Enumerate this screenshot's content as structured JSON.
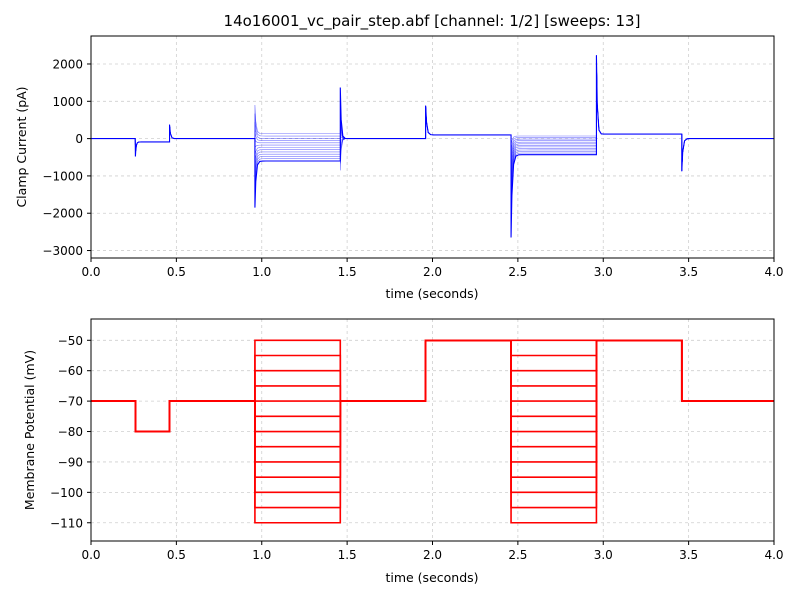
{
  "chart_data": [
    {
      "type": "line",
      "title": "14o16001_vc_pair_step.abf [channel: 1/2] [sweeps: 13]",
      "xlabel": "time (seconds)",
      "ylabel": "Clamp Current (pA)",
      "xlim": [
        0,
        4
      ],
      "ylim": [
        -3200,
        2750
      ],
      "x_ticks": [
        "0.0",
        "0.5",
        "1.0",
        "1.5",
        "2.0",
        "2.5",
        "3.0",
        "3.5",
        "4.0"
      ],
      "y_ticks": [
        "−3000",
        "−2000",
        "−1000",
        "0",
        "1000",
        "2000"
      ],
      "x_tick_values": [
        0,
        0.5,
        1.0,
        1.5,
        2.0,
        2.5,
        3.0,
        3.5,
        4.0
      ],
      "y_tick_values": [
        -3000,
        -2000,
        -1000,
        0,
        1000,
        2000
      ],
      "grid": true,
      "color": "#0000ff",
      "sweep_count": 13,
      "events": {
        "step1": {
          "start": 0.26,
          "end": 0.46,
          "onset_peak": -480,
          "plateau": -90,
          "offset_peak": 370
        },
        "step2": {
          "start": 0.96,
          "end": 1.46,
          "onset_peak_min": -1850,
          "onset_peak_max": 900,
          "plateau_min": -600,
          "plateau_max": 130,
          "offset_peak_min": -850,
          "offset_peak_max": 1370
        },
        "step3": {
          "start": 1.96,
          "end": 2.46,
          "onset_peak": 880,
          "plateau": 100
        },
        "step4": {
          "start": 2.46,
          "end": 2.96,
          "onset_peak_min": -2650,
          "plateau_min": -430,
          "plateau_max": 70
        },
        "step5": {
          "start": 2.96,
          "end": 3.46,
          "onset_peak": 2230,
          "plateau": 120,
          "offset_peak": -870
        }
      }
    },
    {
      "type": "line",
      "title": "",
      "xlabel": "time (seconds)",
      "ylabel": "Membrane Potential (mV)",
      "xlim": [
        0,
        4
      ],
      "ylim": [
        -116,
        -43
      ],
      "x_ticks": [
        "0.0",
        "0.5",
        "1.0",
        "1.5",
        "2.0",
        "2.5",
        "3.0",
        "3.5",
        "4.0"
      ],
      "y_ticks": [
        "−110",
        "−100",
        "−90",
        "−80",
        "−70",
        "−60",
        "−50"
      ],
      "x_tick_values": [
        0,
        0.5,
        1.0,
        1.5,
        2.0,
        2.5,
        3.0,
        3.5,
        4.0
      ],
      "y_tick_values": [
        -110,
        -100,
        -90,
        -80,
        -70,
        -60,
        -50
      ],
      "grid": true,
      "color": "#ff0000",
      "holding": -70,
      "step_levels": [
        -50,
        -55,
        -60,
        -65,
        -70,
        -75,
        -80,
        -85,
        -90,
        -95,
        -100,
        -105,
        -110
      ],
      "segments": [
        {
          "x0": 0.0,
          "x1": 0.26,
          "value": -70
        },
        {
          "x0": 0.26,
          "x1": 0.46,
          "value": -80
        },
        {
          "x0": 0.46,
          "x1": 0.96,
          "value": -70
        },
        {
          "x0": 0.96,
          "x1": 1.46,
          "value": "step"
        },
        {
          "x0": 1.46,
          "x1": 1.96,
          "value": -70
        },
        {
          "x0": 1.96,
          "x1": 2.46,
          "value": -50
        },
        {
          "x0": 2.46,
          "x1": 2.96,
          "value": "step"
        },
        {
          "x0": 2.96,
          "x1": 3.46,
          "value": -50
        },
        {
          "x0": 3.46,
          "x1": 4.0,
          "value": -70
        }
      ]
    }
  ]
}
